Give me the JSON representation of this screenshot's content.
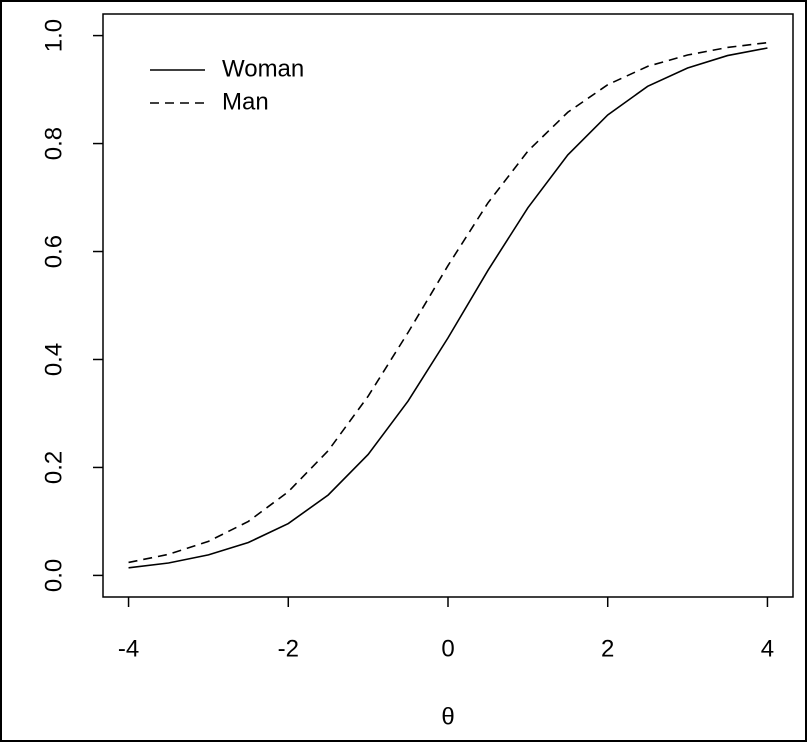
{
  "chart_data": {
    "type": "line",
    "xlabel": "θ",
    "x": [
      -4,
      -3.5,
      -3,
      -2.5,
      -2,
      -1.5,
      -1,
      -0.5,
      0,
      0.5,
      1,
      1.5,
      2,
      2.5,
      3,
      3.5,
      4
    ],
    "series": [
      {
        "name": "Woman",
        "color": "#000000",
        "linestyle": "solid",
        "values": [
          0.014,
          0.023,
          0.038,
          0.061,
          0.096,
          0.149,
          0.224,
          0.323,
          0.44,
          0.565,
          0.681,
          0.779,
          0.853,
          0.906,
          0.94,
          0.963,
          0.977
        ]
      },
      {
        "name": "Man",
        "color": "#000000",
        "linestyle": "dashed",
        "values": [
          0.024,
          0.039,
          0.063,
          0.1,
          0.155,
          0.231,
          0.332,
          0.45,
          0.574,
          0.69,
          0.786,
          0.858,
          0.909,
          0.943,
          0.964,
          0.978,
          0.987
        ]
      }
    ],
    "xlim": [
      -4.32,
      4.32
    ],
    "xticks": [
      -4,
      -2,
      0,
      2,
      4
    ],
    "ylim": [
      -0.04,
      1.04
    ],
    "yticks": [
      {
        "value": 0,
        "label": "0.0"
      },
      0.2,
      0.4,
      0.6,
      0.8,
      {
        "value": 1,
        "label": "1.0"
      }
    ],
    "legend": "topleft",
    "grid": false
  }
}
